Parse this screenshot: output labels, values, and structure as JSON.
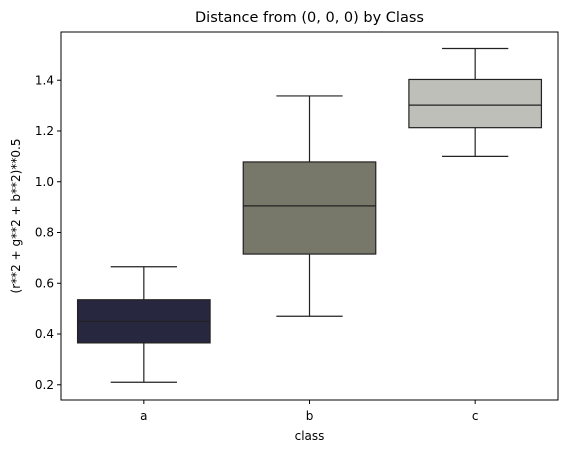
{
  "chart_data": {
    "type": "box",
    "title": "Distance from (0, 0, 0) by Class",
    "xlabel": "class",
    "ylabel": "(r**2 + g**2 + b**2)**0.5",
    "categories": [
      "a",
      "b",
      "c"
    ],
    "ylim": [
      0.14,
      1.59
    ],
    "yticks": [
      0.2,
      0.4,
      0.6,
      0.8,
      1.0,
      1.2,
      1.4
    ],
    "ytick_labels": [
      "0.2",
      "0.4",
      "0.6",
      "0.8",
      "1.0",
      "1.2",
      "1.4"
    ],
    "grid": false,
    "boxes": [
      {
        "category": "a",
        "whisker_low": 0.21,
        "q1": 0.365,
        "median": 0.45,
        "q3": 0.535,
        "whisker_high": 0.665,
        "color": "#27273f"
      },
      {
        "category": "b",
        "whisker_low": 0.47,
        "q1": 0.715,
        "median": 0.905,
        "q3": 1.078,
        "whisker_high": 1.338,
        "color": "#78786a"
      },
      {
        "category": "c",
        "whisker_low": 1.1,
        "q1": 1.213,
        "median": 1.302,
        "q3": 1.403,
        "whisker_high": 1.525,
        "color": "#bfbfb9"
      }
    ]
  }
}
